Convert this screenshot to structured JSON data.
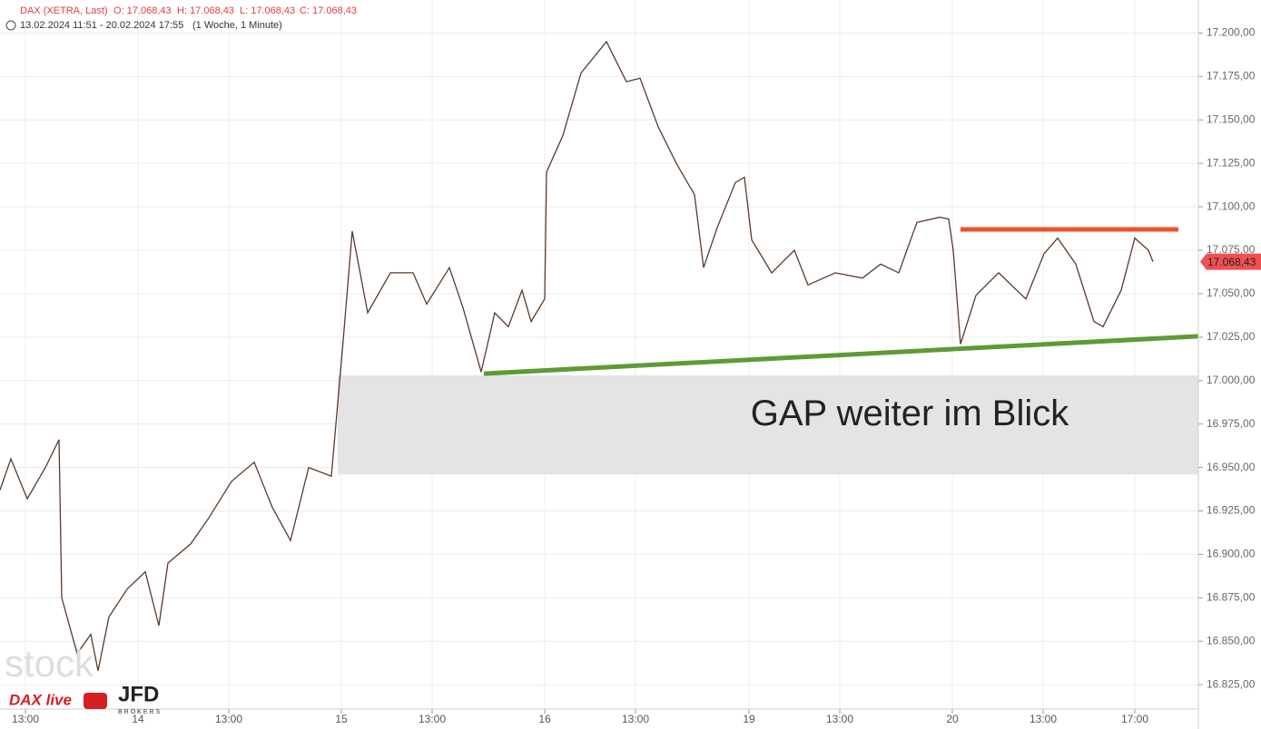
{
  "chart_data": {
    "type": "line",
    "header": {
      "symbol": "DAX (XETRA, Last)",
      "open": "O: 17.068,43",
      "high": "H: 17.068,43",
      "low": "L: 17.068,43",
      "close": "C: 17.068,43",
      "range": "13.02.2024 11:51 - 20.02.2024 17:55",
      "period": "(1 Woche, 1 Minute)"
    },
    "x": [
      0,
      0.6,
      1.5,
      2.5,
      3.25,
      3.4,
      4.25,
      5,
      5.4,
      6,
      7,
      8,
      8.75,
      9.25,
      10.5,
      11.5,
      12.75,
      14,
      15,
      16,
      17,
      18.25,
      18.9,
      19.4,
      20.25,
      21.5,
      22.75,
      23.5,
      24.75,
      25.5,
      26.5,
      27.25,
      28,
      28.75,
      29.25,
      30,
      30.1,
      31,
      32,
      33.4,
      34.5,
      35.25,
      36.25,
      37.25,
      38.25,
      38.75,
      39.5,
      40.5,
      41,
      41.4,
      42.5,
      43.75,
      44.5,
      46,
      47.5,
      48.5,
      49.5,
      50.5,
      51.75,
      52.25,
      52.5,
      52.9,
      53.75,
      55,
      56.5,
      57.5,
      58.25,
      59.25,
      60.25,
      60.75,
      61.75,
      62.5,
      63.25,
      63.5
    ],
    "series": [
      {
        "color": "#5a3a2a",
        "values": [
          16937,
          16955,
          16932,
          16950,
          16966,
          16875,
          16843,
          16854,
          16833,
          16864,
          16880,
          16890,
          16859,
          16895,
          16906,
          16921,
          16942,
          16953,
          16927,
          16908,
          16950,
          16945,
          17023,
          17086,
          17039,
          17062,
          17062,
          17044,
          17065,
          17042,
          17005,
          17039,
          17031,
          17052,
          17034,
          17047,
          17120,
          17141,
          17177,
          17195,
          17172,
          17174,
          17146,
          17125,
          17107,
          17065,
          17088,
          17114,
          17117,
          17081,
          17062,
          17075,
          17055,
          17062,
          17059,
          17067,
          17062,
          17091,
          17094,
          17093,
          17075,
          17021,
          17049,
          17062,
          17047,
          17073,
          17082,
          17067,
          17034,
          17031,
          17052,
          17082,
          17075,
          17068.43
        ]
      }
    ],
    "last_label": {
      "value": 17068.43,
      "label": "17.068,43",
      "color": "#f05050"
    },
    "xlim": [
      0,
      66
    ],
    "ylim": [
      16811,
      17219
    ],
    "xticks": [
      {
        "value": 1.4,
        "label": "13:00"
      },
      {
        "value": 7.6,
        "label": "14"
      },
      {
        "value": 12.6,
        "label": "13:00"
      },
      {
        "value": 18.8,
        "label": "15"
      },
      {
        "value": 23.8,
        "label": "13:00"
      },
      {
        "value": 30,
        "label": "16"
      },
      {
        "value": 35,
        "label": "13:00"
      },
      {
        "value": 41.25,
        "label": "19"
      },
      {
        "value": 46.25,
        "label": "13:00"
      },
      {
        "value": 52.45,
        "label": "20"
      },
      {
        "value": 57.45,
        "label": "13:00"
      },
      {
        "value": 62.5,
        "label": "17:00"
      }
    ],
    "yticks": [
      {
        "value": 16825,
        "label": "16.825,00"
      },
      {
        "value": 16850,
        "label": "16.850,00"
      },
      {
        "value": 16875,
        "label": "16.875,00"
      },
      {
        "value": 16900,
        "label": "16.900,00"
      },
      {
        "value": 16925,
        "label": "16.925,00"
      },
      {
        "value": 16950,
        "label": "16.950,00"
      },
      {
        "value": 16975,
        "label": "16.975,00"
      },
      {
        "value": 17000,
        "label": "17.000,00"
      },
      {
        "value": 17025,
        "label": "17.025,00"
      },
      {
        "value": 17050,
        "label": "17.050,00"
      },
      {
        "value": 17075,
        "label": "17.075,00"
      },
      {
        "value": 17100,
        "label": "17.100,00"
      },
      {
        "value": 17125,
        "label": "17.125,00"
      },
      {
        "value": 17150,
        "label": "17.150,00"
      },
      {
        "value": 17175,
        "label": "17.175,00"
      },
      {
        "value": 17200,
        "label": "17.200,00"
      }
    ],
    "grid": true,
    "gap_zone": {
      "text": "GAP weiter im Blick",
      "x": [
        18.6,
        66
      ],
      "y": [
        16946,
        17003
      ],
      "color": "#e4e4e4"
    },
    "resistance": {
      "x": [
        52.9,
        64.9
      ],
      "y": [
        17087,
        17087
      ],
      "color": "#f0502a"
    },
    "support": {
      "x": [
        26.65,
        66
      ],
      "y": [
        17004,
        17025.5
      ],
      "color": "#5e9a35"
    },
    "logos": {
      "stock": "stock",
      "dax_live": "DAX live",
      "broker": "JFD",
      "broker_sub": "BROKERS"
    }
  }
}
